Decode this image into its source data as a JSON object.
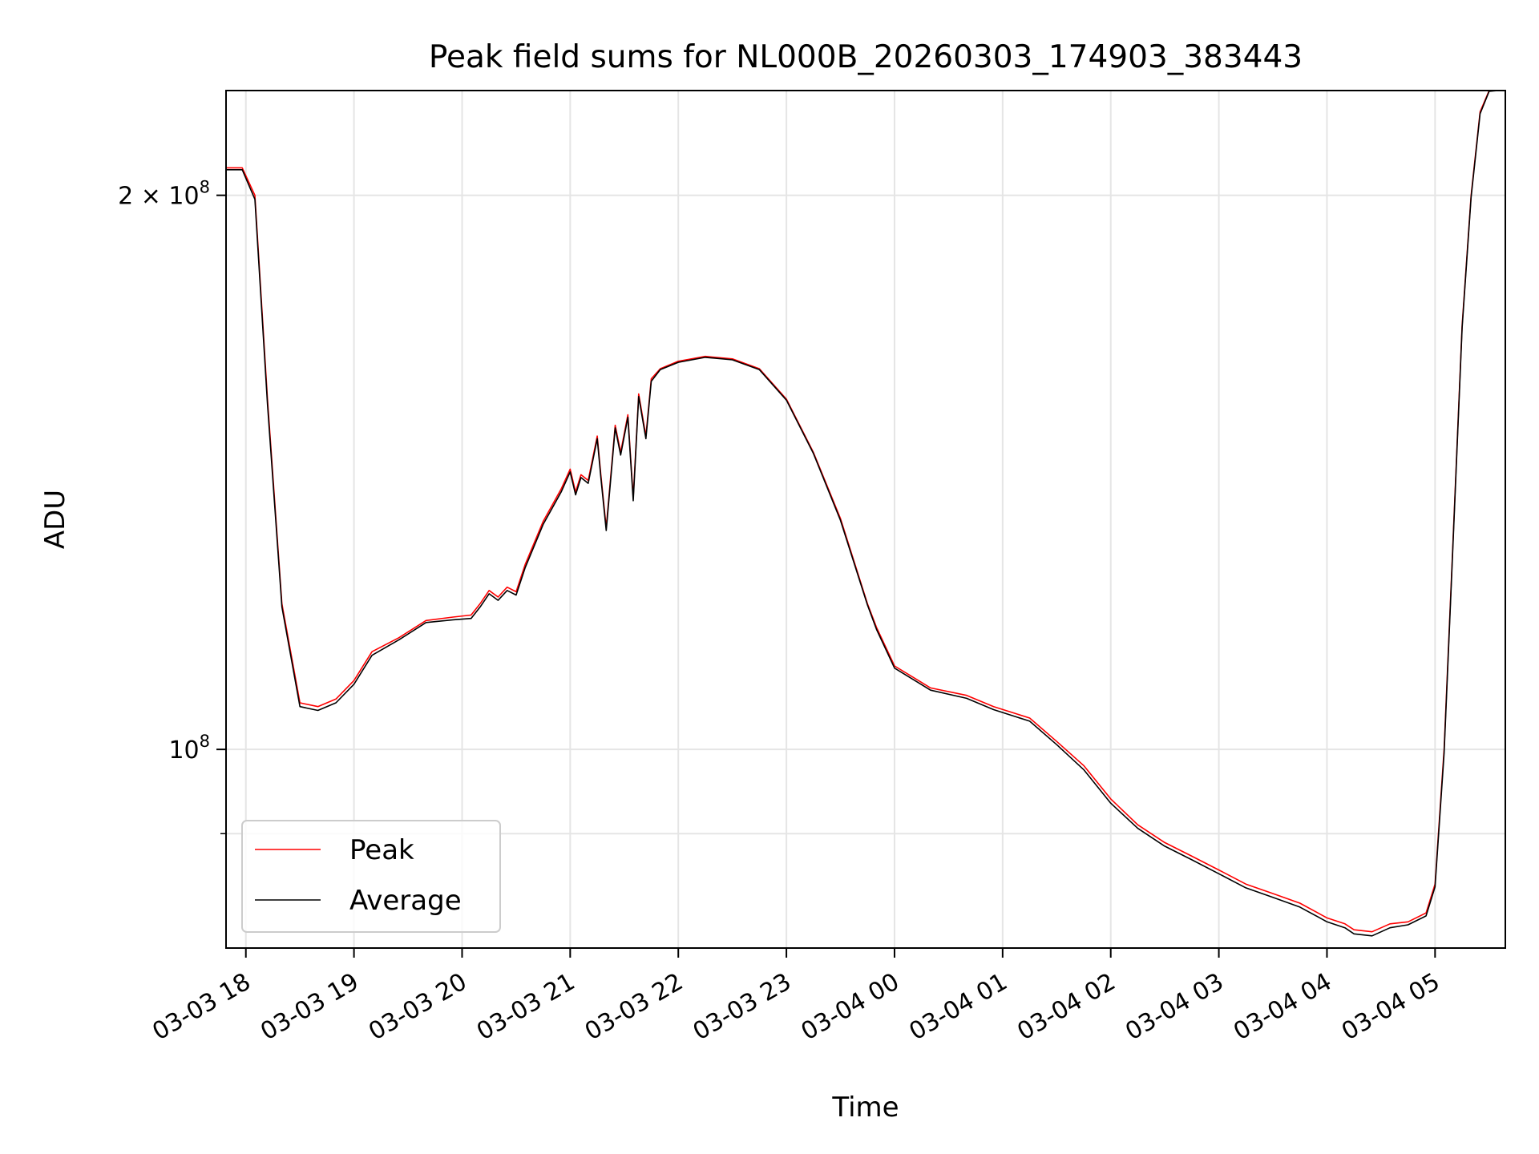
{
  "chart_data": {
    "type": "line",
    "title": "Peak field sums for NL000B_20260303_174903_383443",
    "xlabel": "Time",
    "ylabel": "ADU",
    "yscale": "log",
    "xlim": [
      "2026-03-03 17:49",
      "2026-03-04 05:39"
    ],
    "ylim": [
      78000000,
      228000000
    ],
    "x_ticks": [
      {
        "value": "2026-03-03 18:00",
        "label": "03-03 18"
      },
      {
        "value": "2026-03-03 19:00",
        "label": "03-03 19"
      },
      {
        "value": "2026-03-03 20:00",
        "label": "03-03 20"
      },
      {
        "value": "2026-03-03 21:00",
        "label": "03-03 21"
      },
      {
        "value": "2026-03-03 22:00",
        "label": "03-03 22"
      },
      {
        "value": "2026-03-03 23:00",
        "label": "03-03 23"
      },
      {
        "value": "2026-03-04 00:00",
        "label": "03-04 00"
      },
      {
        "value": "2026-03-04 01:00",
        "label": "03-04 01"
      },
      {
        "value": "2026-03-04 02:00",
        "label": "03-04 02"
      },
      {
        "value": "2026-03-04 03:00",
        "label": "03-04 03"
      },
      {
        "value": "2026-03-04 04:00",
        "label": "03-04 04"
      },
      {
        "value": "2026-03-04 05:00",
        "label": "03-04 05"
      }
    ],
    "y_ticks": [
      {
        "value": 200000000,
        "base": "2 × 10",
        "exp": "8"
      },
      {
        "value": 100000000,
        "base": "10",
        "exp": "8"
      }
    ],
    "y_minor_ticks": [
      90000000
    ],
    "grid": true,
    "legend_position": "lower-left",
    "series": [
      {
        "name": "Peak",
        "color": "#ff0000",
        "x": [
          "2026-03-03 17:49",
          "2026-03-03 17:58",
          "2026-03-03 18:05",
          "2026-03-03 18:12",
          "2026-03-03 18:20",
          "2026-03-03 18:30",
          "2026-03-03 18:40",
          "2026-03-03 18:50",
          "2026-03-03 19:00",
          "2026-03-03 19:10",
          "2026-03-03 19:25",
          "2026-03-03 19:40",
          "2026-03-03 19:55",
          "2026-03-03 20:05",
          "2026-03-03 20:10",
          "2026-03-03 20:15",
          "2026-03-03 20:20",
          "2026-03-03 20:25",
          "2026-03-03 20:30",
          "2026-03-03 20:35",
          "2026-03-03 20:45",
          "2026-03-03 20:55",
          "2026-03-03 21:00",
          "2026-03-03 21:03",
          "2026-03-03 21:06",
          "2026-03-03 21:10",
          "2026-03-03 21:15",
          "2026-03-03 21:17",
          "2026-03-03 21:20",
          "2026-03-03 21:25",
          "2026-03-03 21:28",
          "2026-03-03 21:32",
          "2026-03-03 21:35",
          "2026-03-03 21:38",
          "2026-03-03 21:42",
          "2026-03-03 21:45",
          "2026-03-03 21:50",
          "2026-03-03 22:00",
          "2026-03-03 22:15",
          "2026-03-03 22:30",
          "2026-03-03 22:45",
          "2026-03-03 23:00",
          "2026-03-03 23:15",
          "2026-03-03 23:30",
          "2026-03-03 23:45",
          "2026-03-03 23:50",
          "2026-03-04 00:00",
          "2026-03-04 00:20",
          "2026-03-04 00:40",
          "2026-03-04 00:55",
          "2026-03-04 01:15",
          "2026-03-04 01:30",
          "2026-03-04 01:45",
          "2026-03-04 02:00",
          "2026-03-04 02:15",
          "2026-03-04 02:30",
          "2026-03-04 02:45",
          "2026-03-04 03:00",
          "2026-03-04 03:15",
          "2026-03-04 03:30",
          "2026-03-04 03:45",
          "2026-03-04 03:55",
          "2026-03-04 04:00",
          "2026-03-04 04:10",
          "2026-03-04 04:15",
          "2026-03-04 04:25",
          "2026-03-04 04:35",
          "2026-03-04 04:45",
          "2026-03-04 04:55",
          "2026-03-04 05:00",
          "2026-03-04 05:05",
          "2026-03-04 05:10",
          "2026-03-04 05:15",
          "2026-03-04 05:20",
          "2026-03-04 05:25",
          "2026-03-04 05:30",
          "2026-03-04 05:35",
          "2026-03-04 05:39"
        ],
        "y": [
          207000000,
          207000000,
          200000000,
          155000000,
          120000000,
          106000000,
          105500000,
          106500000,
          109000000,
          113000000,
          115000000,
          117500000,
          118000000,
          118300000,
          120000000,
          122000000,
          121000000,
          122500000,
          121800000,
          126000000,
          133000000,
          138500000,
          142000000,
          138000000,
          141000000,
          140000000,
          148000000,
          141000000,
          132000000,
          150000000,
          145000000,
          152000000,
          137000000,
          156000000,
          148000000,
          159000000,
          161000000,
          162500000,
          163500000,
          163000000,
          161000000,
          155000000,
          145000000,
          133500000,
          120000000,
          116500000,
          111000000,
          108000000,
          107000000,
          105500000,
          104000000,
          101000000,
          98000000,
          94000000,
          91000000,
          89000000,
          87500000,
          86000000,
          84500000,
          83500000,
          82500000,
          81500000,
          81000000,
          80400000,
          79800000,
          79600000,
          80400000,
          80600000,
          81500000,
          84500000,
          100000000,
          130000000,
          170000000,
          200000000,
          222000000,
          228000000,
          228000000,
          228000000
        ]
      },
      {
        "name": "Average",
        "color": "#000000",
        "x": [
          "2026-03-03 17:49",
          "2026-03-03 17:58",
          "2026-03-03 18:05",
          "2026-03-03 18:12",
          "2026-03-03 18:20",
          "2026-03-03 18:30",
          "2026-03-03 18:40",
          "2026-03-03 18:50",
          "2026-03-03 19:00",
          "2026-03-03 19:10",
          "2026-03-03 19:25",
          "2026-03-03 19:40",
          "2026-03-03 19:55",
          "2026-03-03 20:05",
          "2026-03-03 20:10",
          "2026-03-03 20:15",
          "2026-03-03 20:20",
          "2026-03-03 20:25",
          "2026-03-03 20:30",
          "2026-03-03 20:35",
          "2026-03-03 20:45",
          "2026-03-03 20:55",
          "2026-03-03 21:00",
          "2026-03-03 21:03",
          "2026-03-03 21:06",
          "2026-03-03 21:10",
          "2026-03-03 21:15",
          "2026-03-03 21:17",
          "2026-03-03 21:20",
          "2026-03-03 21:25",
          "2026-03-03 21:28",
          "2026-03-03 21:32",
          "2026-03-03 21:35",
          "2026-03-03 21:38",
          "2026-03-03 21:42",
          "2026-03-03 21:45",
          "2026-03-03 21:50",
          "2026-03-03 22:00",
          "2026-03-03 22:15",
          "2026-03-03 22:30",
          "2026-03-03 22:45",
          "2026-03-03 23:00",
          "2026-03-03 23:15",
          "2026-03-03 23:30",
          "2026-03-03 23:45",
          "2026-03-03 23:50",
          "2026-03-04 00:00",
          "2026-03-04 00:20",
          "2026-03-04 00:40",
          "2026-03-04 00:55",
          "2026-03-04 01:15",
          "2026-03-04 01:30",
          "2026-03-04 01:45",
          "2026-03-04 02:00",
          "2026-03-04 02:15",
          "2026-03-04 02:30",
          "2026-03-04 02:45",
          "2026-03-04 03:00",
          "2026-03-04 03:15",
          "2026-03-04 03:30",
          "2026-03-04 03:45",
          "2026-03-04 03:55",
          "2026-03-04 04:00",
          "2026-03-04 04:10",
          "2026-03-04 04:15",
          "2026-03-04 04:25",
          "2026-03-04 04:35",
          "2026-03-04 04:45",
          "2026-03-04 04:55",
          "2026-03-04 05:00",
          "2026-03-04 05:05",
          "2026-03-04 05:10",
          "2026-03-04 05:15",
          "2026-03-04 05:20",
          "2026-03-04 05:25",
          "2026-03-04 05:30",
          "2026-03-04 05:35",
          "2026-03-04 05:39"
        ],
        "y": [
          206500000,
          206500000,
          199000000,
          154000000,
          119500000,
          105500000,
          105000000,
          106000000,
          108500000,
          112500000,
          114700000,
          117200000,
          117600000,
          117800000,
          119500000,
          121500000,
          120500000,
          122000000,
          121300000,
          125500000,
          132500000,
          138000000,
          141500000,
          137500000,
          140500000,
          139500000,
          147500000,
          140500000,
          131500000,
          149500000,
          144500000,
          151500000,
          136500000,
          155500000,
          147500000,
          158500000,
          160800000,
          162300000,
          163300000,
          162800000,
          160800000,
          154800000,
          144800000,
          133200000,
          119800000,
          116200000,
          110700000,
          107700000,
          106600000,
          105100000,
          103600000,
          100600000,
          97500000,
          93500000,
          90600000,
          88600000,
          87100000,
          85600000,
          84100000,
          83100000,
          82100000,
          81100000,
          80600000,
          80000000,
          79400000,
          79200000,
          80000000,
          80300000,
          81200000,
          84200000,
          99500000,
          129500000,
          169500000,
          199500000,
          221500000,
          227800000,
          228000000,
          228000000
        ]
      }
    ]
  }
}
